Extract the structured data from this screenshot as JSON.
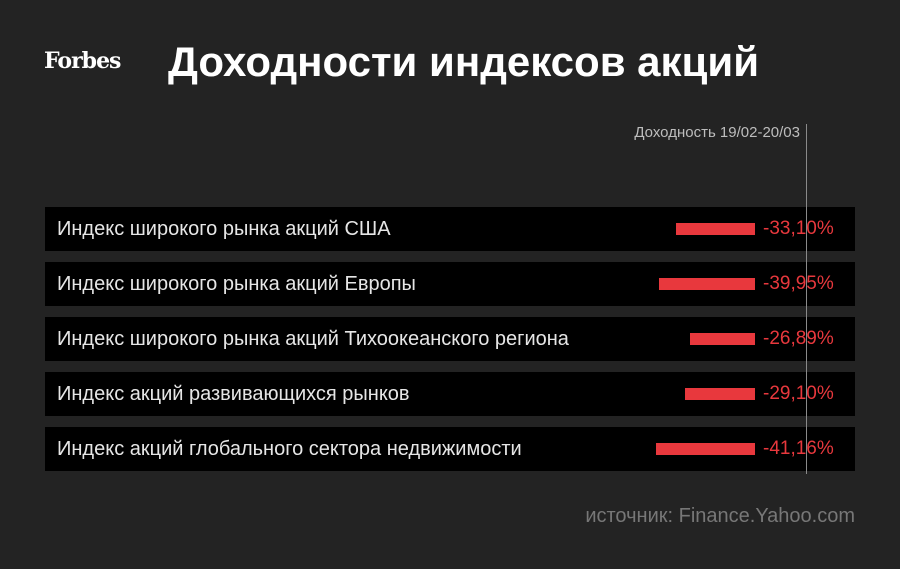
{
  "logo": "Forbes",
  "colors": {
    "background": "#232323",
    "row": "#000000",
    "bar": "#e8383d",
    "text": "#ffffff"
  },
  "chart_data": {
    "type": "bar",
    "orientation": "horizontal",
    "title": "Доходности индексов акций",
    "series_label": "Доходность 19/02-20/03",
    "categories": [
      "Индекс широкого рынка акций США",
      "Индекс широкого рынка акций Европы",
      "Индекс широкого рынка акций Тихоокеанского региона",
      "Индекс акций развивающихся рынков",
      "Индекс акций глобального сектора недвижимости"
    ],
    "values": [
      -33.1,
      -39.95,
      -26.89,
      -29.1,
      -41.16
    ],
    "value_labels": [
      "-33,10%",
      "-39,95%",
      "-26,89%",
      "-29,10%",
      "-41,16%"
    ],
    "unit": "%",
    "source": "источник: Finance.Yahoo.com"
  }
}
